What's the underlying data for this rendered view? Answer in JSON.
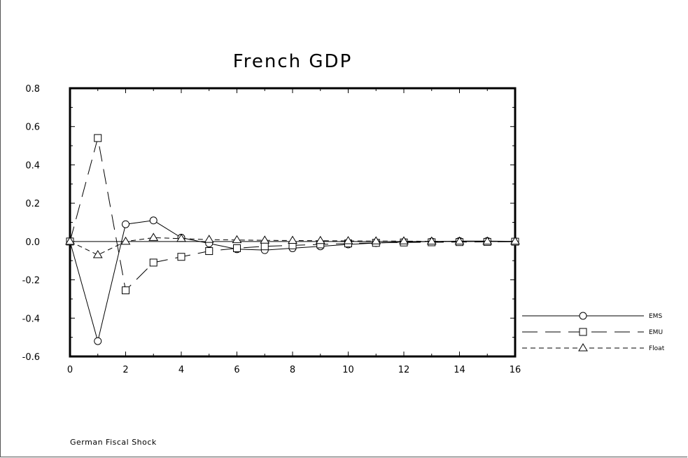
{
  "chart_data": {
    "type": "line",
    "title": "French GDP",
    "caption": "German Fiscal Shock",
    "xlabel": "",
    "ylabel": "",
    "xlim": [
      0,
      16
    ],
    "ylim": [
      -0.6,
      0.8
    ],
    "x_ticks": [
      "0",
      "2",
      "4",
      "6",
      "8",
      "10",
      "12",
      "14",
      "16"
    ],
    "y_ticks": [
      "0.8",
      "0.6",
      "0.4",
      "0.2",
      "0.0",
      "-0.2",
      "-0.4",
      "-0.6"
    ],
    "x": [
      0,
      1,
      2,
      3,
      4,
      5,
      6,
      7,
      8,
      9,
      10,
      11,
      12,
      13,
      14,
      15,
      16
    ],
    "legend_position": "right, outside plot",
    "reference_line": 0,
    "series": [
      {
        "name": "EMS",
        "style": "solid",
        "marker": "circle",
        "values": [
          0.0,
          -0.52,
          0.09,
          0.11,
          0.02,
          -0.01,
          -0.04,
          -0.045,
          -0.035,
          -0.025,
          -0.015,
          -0.008,
          -0.003,
          0.0,
          0.002,
          0.002,
          0.001
        ]
      },
      {
        "name": "EMU",
        "style": "long-dash",
        "marker": "square",
        "values": [
          0.0,
          0.54,
          -0.255,
          -0.11,
          -0.08,
          -0.05,
          -0.035,
          -0.025,
          -0.02,
          -0.015,
          -0.01,
          -0.007,
          -0.005,
          -0.004,
          -0.003,
          -0.002,
          -0.001
        ]
      },
      {
        "name": "Float",
        "style": "short-dash",
        "marker": "triangle",
        "values": [
          0.0,
          -0.07,
          0.0,
          0.02,
          0.015,
          0.01,
          0.008,
          0.006,
          0.005,
          0.004,
          0.003,
          0.002,
          0.002,
          0.001,
          0.001,
          0.001,
          0.001
        ]
      }
    ]
  }
}
